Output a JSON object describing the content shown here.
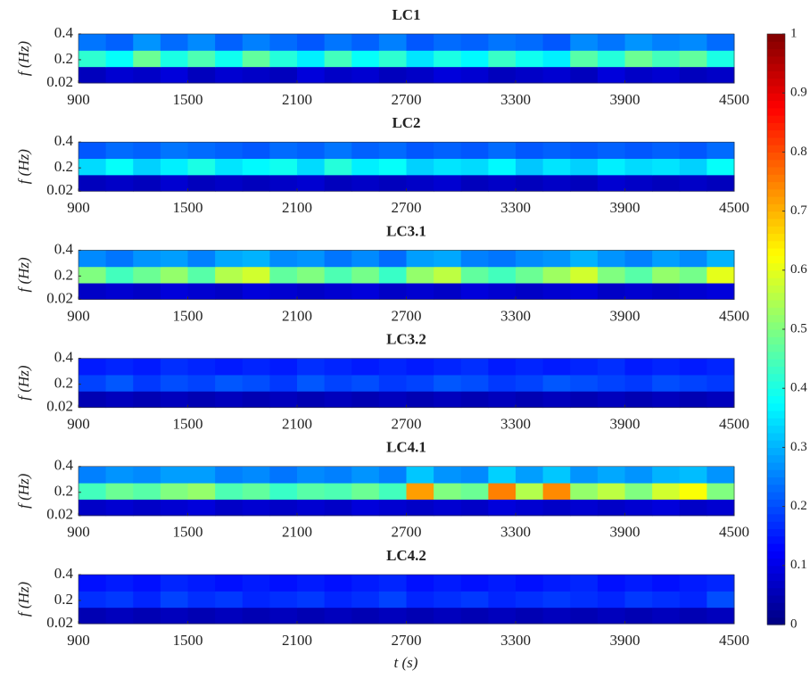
{
  "chart_data": {
    "type": "heatmap",
    "xlabel": "t (s)",
    "ylabel": "f (Hz)",
    "xlim": [
      900,
      4500
    ],
    "xticks": [
      900,
      1500,
      2100,
      2700,
      3300,
      3900,
      4500
    ],
    "ylim": [
      0.02,
      0.4
    ],
    "yticks": [
      0.02,
      0.2,
      0.4
    ],
    "colorbar": {
      "lim": [
        0,
        1
      ],
      "ticks": [
        0,
        0.1,
        0.2,
        0.3,
        0.4,
        0.5,
        0.6,
        0.7,
        0.8,
        0.9,
        1
      ]
    },
    "panels": [
      {
        "title": "LC1",
        "z": [
          [
            0.06,
            0.08,
            0.07,
            0.09,
            0.06,
            0.08,
            0.07,
            0.06,
            0.09,
            0.07,
            0.08,
            0.06,
            0.07,
            0.09,
            0.08,
            0.06,
            0.07,
            0.08,
            0.06,
            0.09,
            0.07,
            0.08,
            0.06,
            0.07
          ],
          [
            0.42,
            0.38,
            0.48,
            0.4,
            0.45,
            0.39,
            0.47,
            0.41,
            0.36,
            0.44,
            0.38,
            0.42,
            0.35,
            0.4,
            0.37,
            0.43,
            0.39,
            0.36,
            0.46,
            0.41,
            0.48,
            0.44,
            0.47,
            0.4
          ],
          [
            0.24,
            0.22,
            0.27,
            0.23,
            0.26,
            0.22,
            0.25,
            0.23,
            0.21,
            0.24,
            0.22,
            0.25,
            0.21,
            0.23,
            0.22,
            0.24,
            0.23,
            0.21,
            0.26,
            0.24,
            0.27,
            0.25,
            0.26,
            0.23
          ]
        ]
      },
      {
        "title": "LC2",
        "z": [
          [
            0.06,
            0.07,
            0.06,
            0.08,
            0.06,
            0.07,
            0.06,
            0.07,
            0.08,
            0.06,
            0.07,
            0.06,
            0.07,
            0.08,
            0.06,
            0.07,
            0.06,
            0.07,
            0.06,
            0.08,
            0.07,
            0.06,
            0.07,
            0.06
          ],
          [
            0.34,
            0.38,
            0.33,
            0.36,
            0.4,
            0.35,
            0.37,
            0.39,
            0.34,
            0.41,
            0.36,
            0.38,
            0.33,
            0.35,
            0.34,
            0.37,
            0.32,
            0.35,
            0.33,
            0.36,
            0.34,
            0.35,
            0.33,
            0.38
          ],
          [
            0.21,
            0.23,
            0.22,
            0.24,
            0.23,
            0.22,
            0.21,
            0.23,
            0.22,
            0.24,
            0.22,
            0.23,
            0.21,
            0.22,
            0.21,
            0.23,
            0.21,
            0.22,
            0.21,
            0.22,
            0.21,
            0.22,
            0.21,
            0.23
          ]
        ]
      },
      {
        "title": "LC3.1",
        "z": [
          [
            0.07,
            0.08,
            0.07,
            0.09,
            0.08,
            0.07,
            0.09,
            0.08,
            0.07,
            0.08,
            0.09,
            0.07,
            0.08,
            0.07,
            0.09,
            0.08,
            0.07,
            0.08,
            0.09,
            0.07,
            0.08,
            0.07,
            0.08,
            0.09
          ],
          [
            0.5,
            0.44,
            0.48,
            0.52,
            0.46,
            0.55,
            0.58,
            0.47,
            0.5,
            0.45,
            0.49,
            0.43,
            0.52,
            0.56,
            0.47,
            0.44,
            0.48,
            0.53,
            0.58,
            0.5,
            0.46,
            0.52,
            0.49,
            0.6
          ],
          [
            0.26,
            0.24,
            0.27,
            0.28,
            0.25,
            0.29,
            0.3,
            0.26,
            0.27,
            0.24,
            0.26,
            0.23,
            0.28,
            0.29,
            0.25,
            0.24,
            0.26,
            0.27,
            0.3,
            0.27,
            0.25,
            0.28,
            0.26,
            0.3
          ]
        ]
      },
      {
        "title": "LC3.2",
        "z": [
          [
            0.05,
            0.06,
            0.05,
            0.06,
            0.05,
            0.06,
            0.05,
            0.06,
            0.05,
            0.06,
            0.05,
            0.06,
            0.05,
            0.06,
            0.05,
            0.06,
            0.05,
            0.06,
            0.05,
            0.06,
            0.05,
            0.06,
            0.05,
            0.06
          ],
          [
            0.19,
            0.21,
            0.18,
            0.2,
            0.19,
            0.21,
            0.2,
            0.18,
            0.21,
            0.19,
            0.2,
            0.18,
            0.19,
            0.21,
            0.2,
            0.18,
            0.19,
            0.21,
            0.2,
            0.19,
            0.18,
            0.2,
            0.19,
            0.18
          ],
          [
            0.15,
            0.16,
            0.15,
            0.17,
            0.16,
            0.15,
            0.16,
            0.15,
            0.17,
            0.16,
            0.15,
            0.16,
            0.15,
            0.16,
            0.17,
            0.15,
            0.16,
            0.15,
            0.16,
            0.17,
            0.15,
            0.16,
            0.15,
            0.16
          ]
        ]
      },
      {
        "title": "LC4.1",
        "z": [
          [
            0.07,
            0.08,
            0.07,
            0.08,
            0.09,
            0.07,
            0.08,
            0.07,
            0.08,
            0.07,
            0.09,
            0.08,
            0.07,
            0.08,
            0.07,
            0.09,
            0.08,
            0.07,
            0.08,
            0.07,
            0.08,
            0.09,
            0.07,
            0.08
          ],
          [
            0.44,
            0.48,
            0.46,
            0.5,
            0.52,
            0.45,
            0.47,
            0.43,
            0.46,
            0.45,
            0.48,
            0.44,
            0.72,
            0.5,
            0.48,
            0.75,
            0.55,
            0.74,
            0.52,
            0.56,
            0.5,
            0.58,
            0.62,
            0.5
          ],
          [
            0.25,
            0.27,
            0.26,
            0.28,
            0.28,
            0.25,
            0.26,
            0.24,
            0.26,
            0.25,
            0.27,
            0.25,
            0.32,
            0.27,
            0.26,
            0.33,
            0.28,
            0.32,
            0.27,
            0.29,
            0.27,
            0.3,
            0.31,
            0.27
          ]
        ]
      },
      {
        "title": "LC4.2",
        "z": [
          [
            0.05,
            0.06,
            0.05,
            0.06,
            0.05,
            0.06,
            0.05,
            0.06,
            0.05,
            0.06,
            0.05,
            0.06,
            0.05,
            0.06,
            0.05,
            0.06,
            0.05,
            0.06,
            0.05,
            0.06,
            0.05,
            0.06,
            0.05,
            0.06
          ],
          [
            0.17,
            0.18,
            0.16,
            0.19,
            0.17,
            0.18,
            0.16,
            0.17,
            0.18,
            0.16,
            0.17,
            0.19,
            0.16,
            0.17,
            0.18,
            0.16,
            0.17,
            0.18,
            0.17,
            0.16,
            0.18,
            0.17,
            0.16,
            0.2
          ],
          [
            0.14,
            0.15,
            0.14,
            0.16,
            0.15,
            0.14,
            0.15,
            0.14,
            0.15,
            0.14,
            0.15,
            0.16,
            0.14,
            0.15,
            0.14,
            0.15,
            0.14,
            0.15,
            0.16,
            0.14,
            0.15,
            0.14,
            0.15,
            0.16
          ]
        ]
      }
    ]
  }
}
